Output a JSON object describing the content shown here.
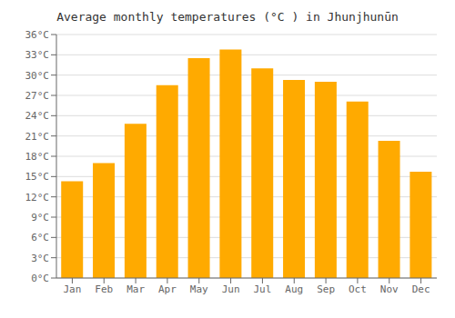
{
  "chart_data": {
    "type": "bar",
    "title": "Average monthly temperatures (°C ) in Jhunjhunūn",
    "categories": [
      "Jan",
      "Feb",
      "Mar",
      "Apr",
      "May",
      "Jun",
      "Jul",
      "Aug",
      "Sep",
      "Oct",
      "Nov",
      "Dec"
    ],
    "values": [
      14.3,
      17.0,
      22.8,
      28.5,
      32.5,
      33.8,
      31.0,
      29.3,
      29.0,
      26.1,
      20.3,
      15.7
    ],
    "color": "#FFAA00",
    "ylim": [
      0,
      36
    ],
    "yticks": [
      {
        "value": 0,
        "label": "0°C"
      },
      {
        "value": 3,
        "label": "3°C"
      },
      {
        "value": 6,
        "label": "6°C"
      },
      {
        "value": 9,
        "label": "9°C"
      },
      {
        "value": 12,
        "label": "12°C"
      },
      {
        "value": 15,
        "label": "15°C"
      },
      {
        "value": 18,
        "label": "18°C"
      },
      {
        "value": 21,
        "label": "21°C"
      },
      {
        "value": 24,
        "label": "24°C"
      },
      {
        "value": 27,
        "label": "27°C"
      },
      {
        "value": 30,
        "label": "30°C"
      },
      {
        "value": 33,
        "label": "33°C"
      },
      {
        "value": 36,
        "label": "36°C"
      }
    ],
    "grid": true
  }
}
